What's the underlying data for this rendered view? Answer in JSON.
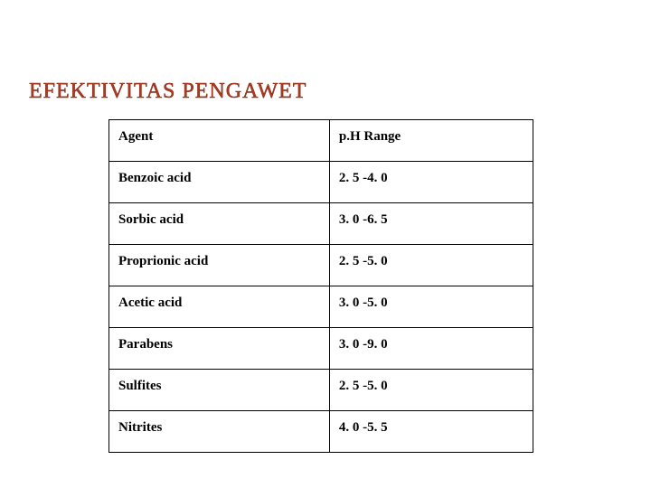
{
  "title": "EFEKTIVITAS PENGAWET",
  "table": {
    "columns": [
      "Agent",
      "p.H Range"
    ],
    "rows": [
      [
        "Benzoic acid",
        "2. 5 -4. 0"
      ],
      [
        "Sorbic acid",
        "3. 0 -6. 5"
      ],
      [
        "Proprionic acid",
        "2. 5 -5. 0"
      ],
      [
        "Acetic acid",
        "3. 0 -5. 0"
      ],
      [
        "Parabens",
        "3. 0 -9. 0"
      ],
      [
        "Sulfites",
        "2. 5 -5. 0"
      ],
      [
        "Nitrites",
        "4. 0 -5. 5"
      ]
    ]
  },
  "style": {
    "title_color": "#b23a1f",
    "title_fontsize": 24,
    "cell_fontsize": 15,
    "border_color": "#000000",
    "background": "#ffffff"
  }
}
